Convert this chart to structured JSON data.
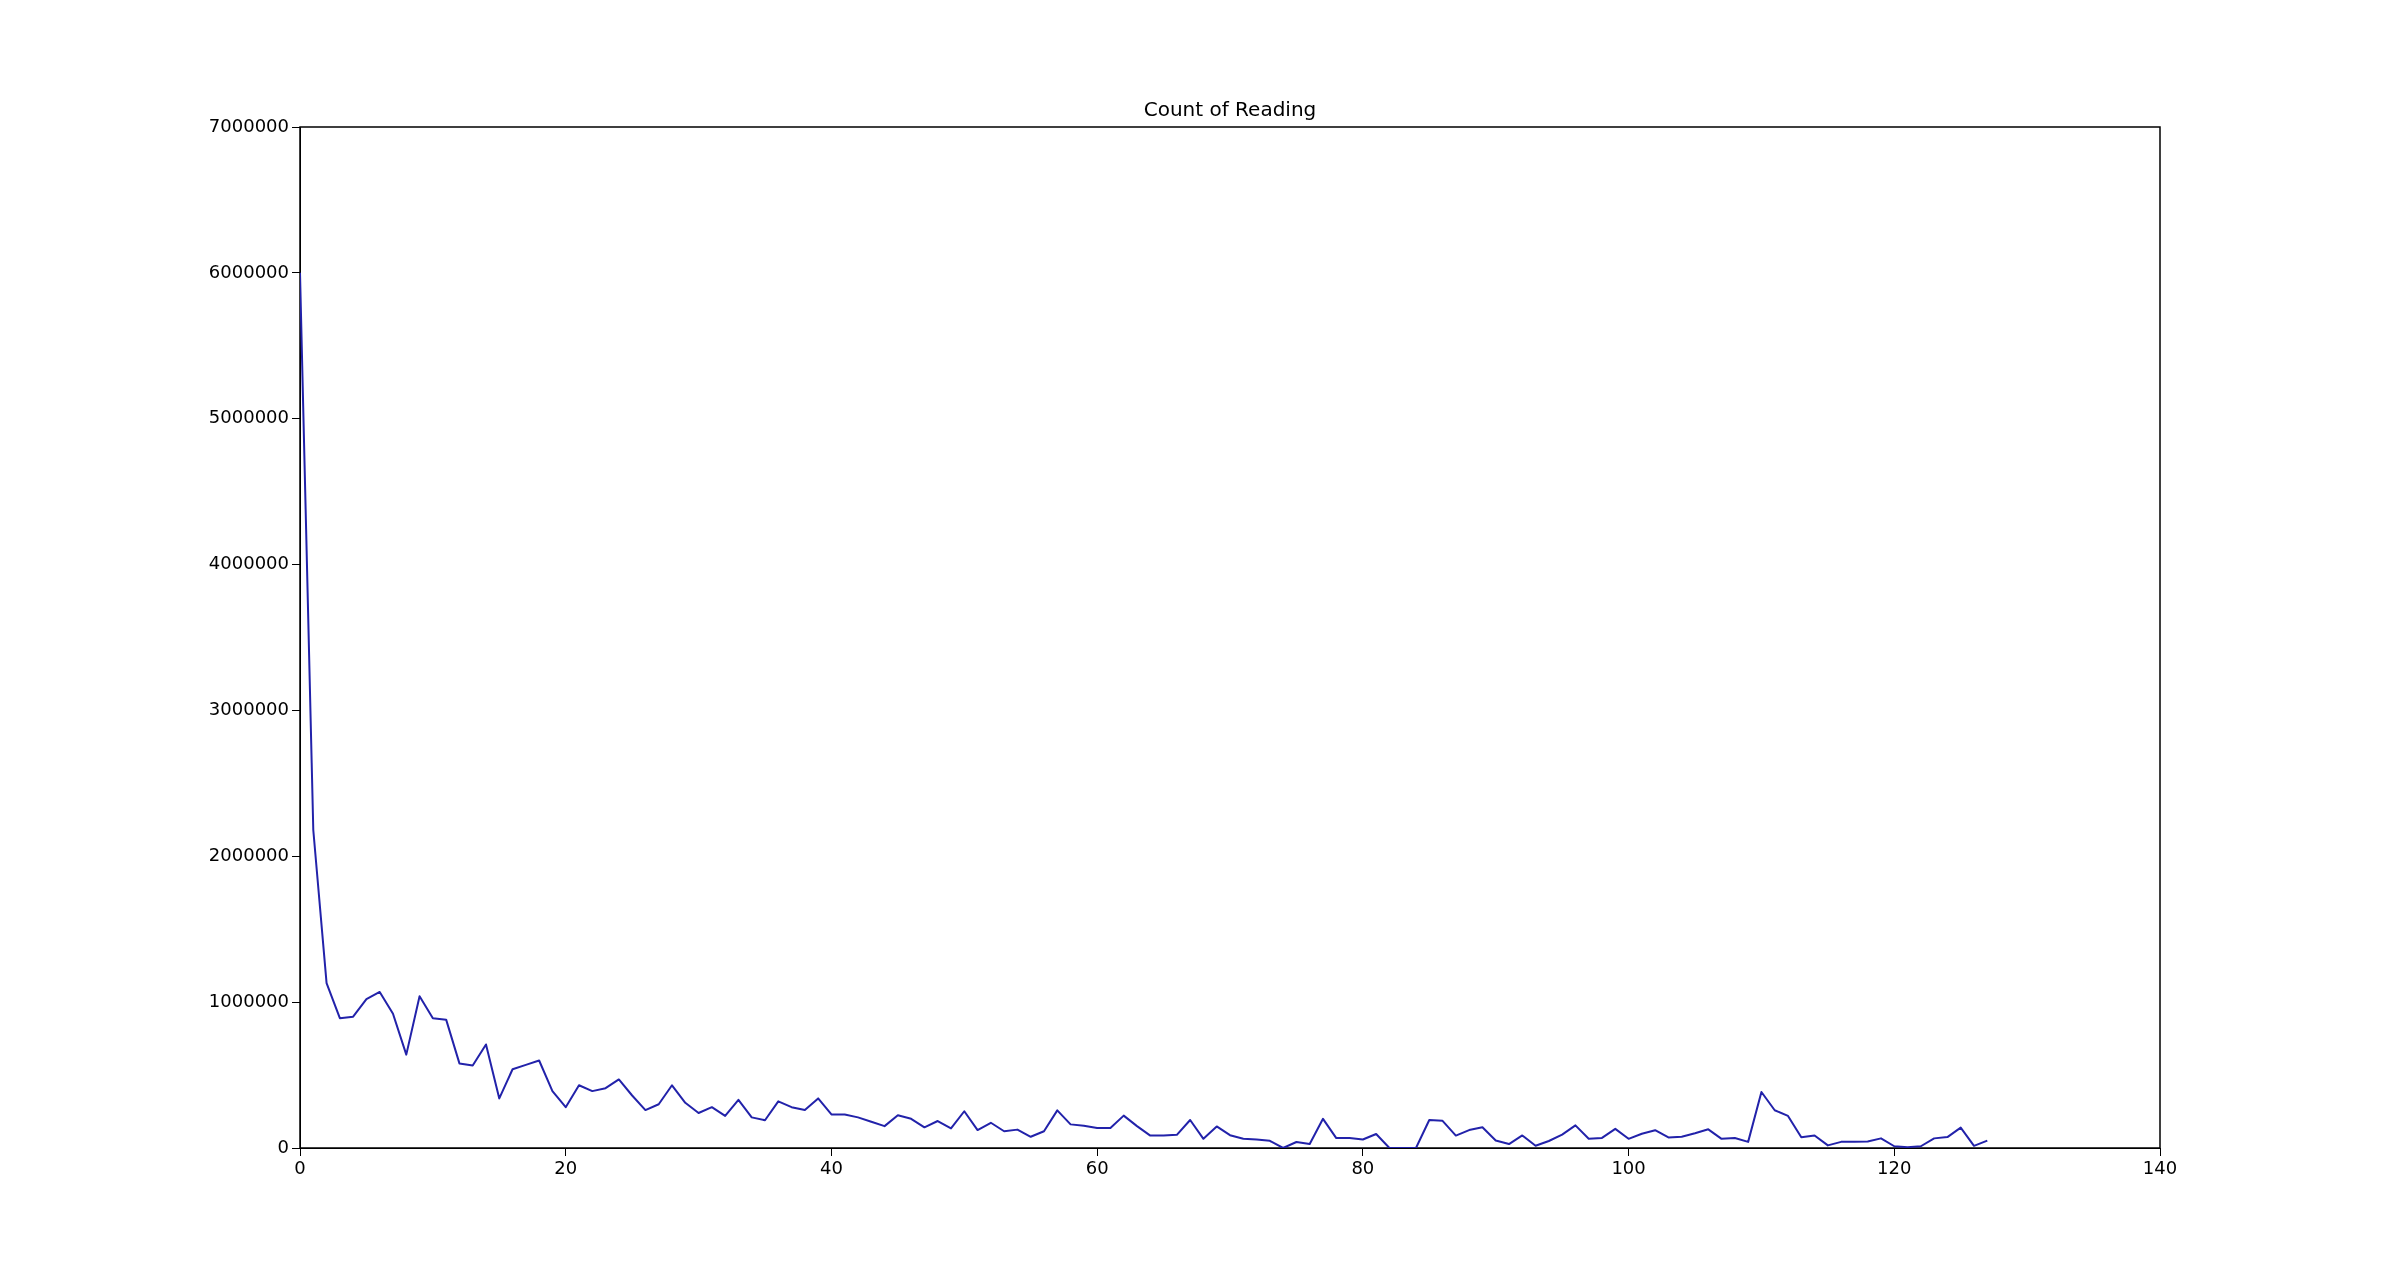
{
  "chart_data": {
    "type": "line",
    "title": "Count of Reading",
    "x": [
      0,
      1,
      2,
      3,
      4,
      5,
      6,
      7,
      8,
      9,
      10,
      11,
      12,
      13,
      14,
      15,
      16,
      17,
      18,
      19,
      20,
      21,
      22,
      23,
      24,
      25,
      26,
      27,
      28,
      29,
      30,
      31,
      32,
      33,
      34,
      35,
      36,
      37,
      38,
      39,
      40,
      41,
      42,
      43,
      44,
      45,
      46,
      47,
      48,
      49,
      50,
      51,
      52,
      53,
      54,
      55,
      56,
      57,
      58,
      59,
      60,
      61,
      62,
      63,
      64,
      65,
      66,
      67,
      68,
      69,
      70,
      71,
      72,
      73,
      74,
      75,
      76,
      77,
      78,
      79,
      80,
      81,
      82,
      83,
      84,
      85,
      86,
      87,
      88,
      89,
      90,
      91,
      92,
      93,
      94,
      95,
      96,
      97,
      98,
      99,
      100,
      101,
      102,
      103,
      104,
      105,
      106,
      107,
      108,
      109,
      110,
      111,
      112,
      113,
      114,
      115,
      116,
      117,
      118,
      119,
      120,
      121,
      122,
      123,
      124,
      125,
      126,
      127
    ],
    "series": [
      {
        "color": "#2222aa",
        "values": [
          6000000,
          2180000,
          1130000,
          890000,
          900000,
          1020000,
          1070000,
          920000,
          640000,
          1040000,
          890000,
          880000,
          580000,
          565000,
          710000,
          340000,
          540000,
          570000,
          600000,
          390000,
          280000,
          430000,
          390000,
          410000,
          470000,
          360000,
          260000,
          300000,
          430000,
          310000,
          240000,
          280000,
          220000,
          330000,
          210000,
          190000,
          320000,
          280000,
          260000,
          340000,
          230000,
          230000,
          210000,
          180000,
          150000,
          225000,
          200000,
          142000,
          185000,
          134000,
          252000,
          123000,
          173000,
          115000,
          126000,
          77000,
          115000,
          258000,
          162000,
          153000,
          137000,
          137000,
          222000,
          150000,
          85000,
          85000,
          90000,
          192000,
          63000,
          148000,
          88000,
          63000,
          58000,
          49000,
          0,
          41000,
          27000,
          200000,
          68000,
          68000,
          58000,
          96000,
          0,
          0,
          0,
          192000,
          186000,
          85000,
          123000,
          142000,
          51000,
          27000,
          86000,
          15000,
          48000,
          92000,
          155000,
          63000,
          69000,
          131000,
          63000,
          98000,
          122000,
          72000,
          77000,
          101000,
          128000,
          63000,
          69000,
          42000,
          384000,
          259000,
          220000,
          74000,
          86000,
          18000,
          42000,
          42000,
          45000,
          66000,
          12000,
          6000,
          12000,
          66000,
          75000,
          140000,
          15000,
          51000
        ]
      }
    ],
    "xlim": [
      0,
      140
    ],
    "xticks": [
      0,
      20,
      40,
      60,
      80,
      100,
      120,
      140
    ],
    "ylim": [
      0,
      7000000
    ],
    "yticks": [
      0,
      1000000,
      2000000,
      3000000,
      4000000,
      5000000,
      6000000,
      7000000
    ],
    "grid": false,
    "legend": false,
    "marker": "none",
    "line_style": "solid"
  }
}
